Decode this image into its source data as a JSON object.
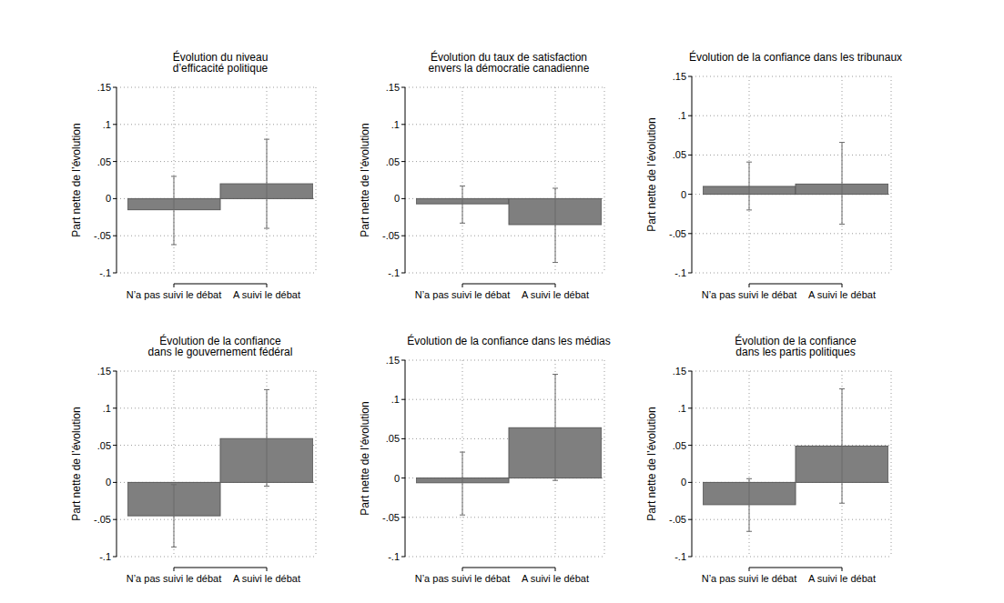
{
  "chart_data": [
    {
      "type": "bar",
      "title": "Évolution du niveau\nd’efficacité politique",
      "ylabel": "Part nette de l’évolution",
      "categories": [
        "N’a pas suivi le débat",
        "A suivi le débat"
      ],
      "values": [
        -0.015,
        0.02
      ],
      "ci_low": [
        -0.062,
        -0.04
      ],
      "ci_high": [
        0.03,
        0.08
      ],
      "color": "#7f7f7f",
      "ylim": [
        -0.1,
        0.15
      ],
      "yticks": [
        {
          "value": -0.1,
          "label": "-.1"
        },
        {
          "value": -0.05,
          "label": "-.05"
        },
        0,
        {
          "value": 0.05,
          "label": ".05"
        },
        {
          "value": 0.1,
          "label": ".1"
        },
        {
          "value": 0.15,
          "label": ".15"
        }
      ],
      "grid": true
    },
    {
      "type": "bar",
      "title": "Évolution du taux de satisfaction\nenvers la démocratie canadienne",
      "ylabel": "Part nette de l’évolution",
      "categories": [
        "N’a pas suivi le débat",
        "A suivi le débat"
      ],
      "values": [
        -0.007,
        -0.035
      ],
      "ci_low": [
        -0.033,
        -0.086
      ],
      "ci_high": [
        0.017,
        0.014
      ],
      "color": "#7f7f7f",
      "ylim": [
        -0.1,
        0.15
      ],
      "yticks": [
        {
          "value": -0.1,
          "label": "-.1"
        },
        {
          "value": -0.05,
          "label": "-.05"
        },
        0,
        {
          "value": 0.05,
          "label": ".05"
        },
        {
          "value": 0.1,
          "label": ".1"
        },
        {
          "value": 0.15,
          "label": ".15"
        }
      ],
      "grid": true
    },
    {
      "type": "bar",
      "title": "Évolution de la confiance dans les tribunaux",
      "ylabel": "Part nette de l’évolution",
      "categories": [
        "N’a pas suivi le débat",
        "A suivi le débat"
      ],
      "values": [
        0.01,
        0.013
      ],
      "ci_low": [
        -0.02,
        -0.038
      ],
      "ci_high": [
        0.041,
        0.066
      ],
      "color": "#7f7f7f",
      "ylim": [
        -0.1,
        0.15
      ],
      "yticks": [
        {
          "value": -0.1,
          "label": "-.1"
        },
        {
          "value": -0.05,
          "label": "-.05"
        },
        0,
        {
          "value": 0.05,
          "label": ".05"
        },
        {
          "value": 0.1,
          "label": ".1"
        },
        {
          "value": 0.15,
          "label": ".15"
        }
      ],
      "grid": true
    },
    {
      "type": "bar",
      "title": "Évolution de la confiance\ndans le gouvernement fédéral",
      "ylabel": "Part nette de l’évolution",
      "categories": [
        "N’a pas suivi le débat",
        "A suivi le débat"
      ],
      "values": [
        -0.045,
        0.059
      ],
      "ci_low": [
        -0.087,
        -0.005
      ],
      "ci_high": [
        -0.003,
        0.125
      ],
      "color": "#7f7f7f",
      "ylim": [
        -0.1,
        0.15
      ],
      "yticks": [
        {
          "value": -0.1,
          "label": "-.1"
        },
        {
          "value": -0.05,
          "label": "-.05"
        },
        0,
        {
          "value": 0.05,
          "label": ".05"
        },
        {
          "value": 0.1,
          "label": ".1"
        },
        {
          "value": 0.15,
          "label": ".15"
        }
      ],
      "grid": true
    },
    {
      "type": "bar",
      "title": "Évolution de la confiance dans les médias",
      "ylabel": "Part nette de l’évolution",
      "categories": [
        "N’a pas suivi le débat",
        "A suivi le débat"
      ],
      "values": [
        -0.006,
        0.064
      ],
      "ci_low": [
        -0.047,
        -0.003
      ],
      "ci_high": [
        0.033,
        0.132
      ],
      "color": "#7f7f7f",
      "ylim": [
        -0.1,
        0.15
      ],
      "yticks": [
        {
          "value": -0.1,
          "label": "-.1"
        },
        {
          "value": -0.05,
          "label": "-.05"
        },
        0,
        {
          "value": 0.05,
          "label": ".05"
        },
        {
          "value": 0.1,
          "label": ".1"
        },
        {
          "value": 0.15,
          "label": ".15"
        }
      ],
      "grid": true
    },
    {
      "type": "bar",
      "title": "Évolution de la confiance\ndans les partis politiques",
      "ylabel": "Part nette de l’évolution",
      "categories": [
        "N’a pas suivi le débat",
        "A suivi le débat"
      ],
      "values": [
        -0.03,
        0.049
      ],
      "ci_low": [
        -0.066,
        -0.028
      ],
      "ci_high": [
        0.005,
        0.126
      ],
      "color": "#7f7f7f",
      "ylim": [
        -0.1,
        0.15
      ],
      "yticks": [
        {
          "value": -0.1,
          "label": "-.1"
        },
        {
          "value": -0.05,
          "label": "-.05"
        },
        0,
        {
          "value": 0.05,
          "label": ".05"
        },
        {
          "value": 0.1,
          "label": ".1"
        },
        {
          "value": 0.15,
          "label": ".15"
        }
      ],
      "grid": true
    }
  ]
}
